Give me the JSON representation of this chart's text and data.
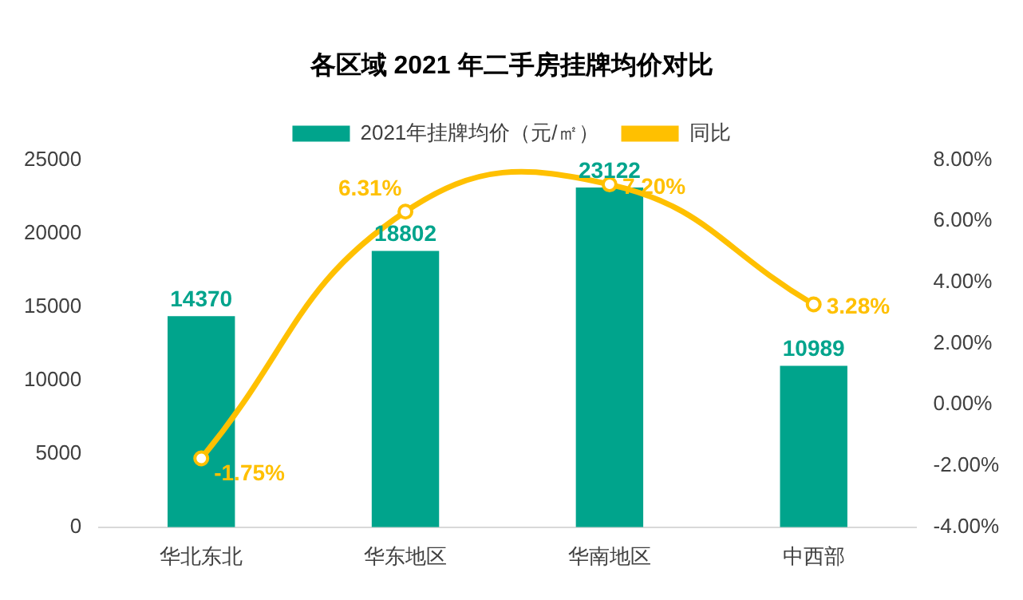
{
  "chart_data": {
    "type": "bar",
    "title": "各区域 2021 年二手房挂牌均价对比",
    "categories": [
      "华北东北",
      "华东地区",
      "华南地区",
      "中西部"
    ],
    "series": [
      {
        "name": "2021年挂牌均价（元/㎡）",
        "color": "#00a48c",
        "values": [
          14370,
          18802,
          23122,
          10989
        ],
        "value_labels": [
          "14370",
          "18802",
          "23122",
          "10989"
        ]
      },
      {
        "name": "同比",
        "type": "line",
        "axis": "y2",
        "color": "#ffc000",
        "values": [
          -1.75,
          6.31,
          7.2,
          3.28
        ],
        "value_labels": [
          "-1.75%",
          "6.31%",
          "7.20%",
          "3.28%"
        ],
        "marker": "circle"
      }
    ],
    "ylim": [
      0,
      25000
    ],
    "yticks": [
      0,
      5000,
      10000,
      15000,
      20000,
      25000
    ],
    "y2lim": [
      -4,
      8
    ],
    "y2ticks": [
      {
        "value": -4,
        "label": "-4.00%"
      },
      {
        "value": -2,
        "label": "-2.00%"
      },
      {
        "value": 0,
        "label": "0.00%"
      },
      {
        "value": 2,
        "label": "2.00%"
      },
      {
        "value": 4,
        "label": "4.00%"
      },
      {
        "value": 6,
        "label": "6.00%"
      },
      {
        "value": 8,
        "label": "8.00%"
      }
    ],
    "legend": "top",
    "grid": false
  }
}
